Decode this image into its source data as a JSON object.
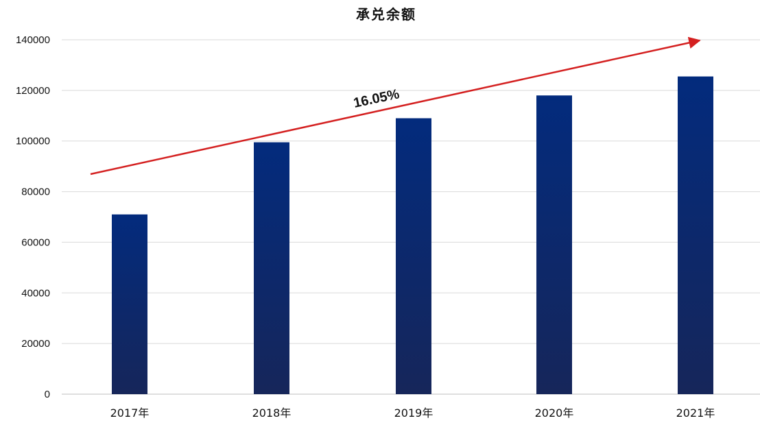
{
  "chart_data": {
    "type": "bar",
    "title": "承兑余额",
    "categories": [
      "2017年",
      "2018年",
      "2019年",
      "2020年",
      "2021年"
    ],
    "values": [
      71000,
      99500,
      109000,
      118000,
      125500
    ],
    "ylim": [
      0,
      140000
    ],
    "yticks": [
      "0",
      "20000",
      "40000",
      "60000",
      "80000",
      "100000",
      "120000",
      "140000"
    ],
    "grid": true,
    "annotation": {
      "text": "16.05%",
      "type": "trend-arrow"
    },
    "colors": {
      "bar_top": "#032b7d",
      "bar_bottom": "#16265a",
      "arrow": "#d42020"
    }
  }
}
